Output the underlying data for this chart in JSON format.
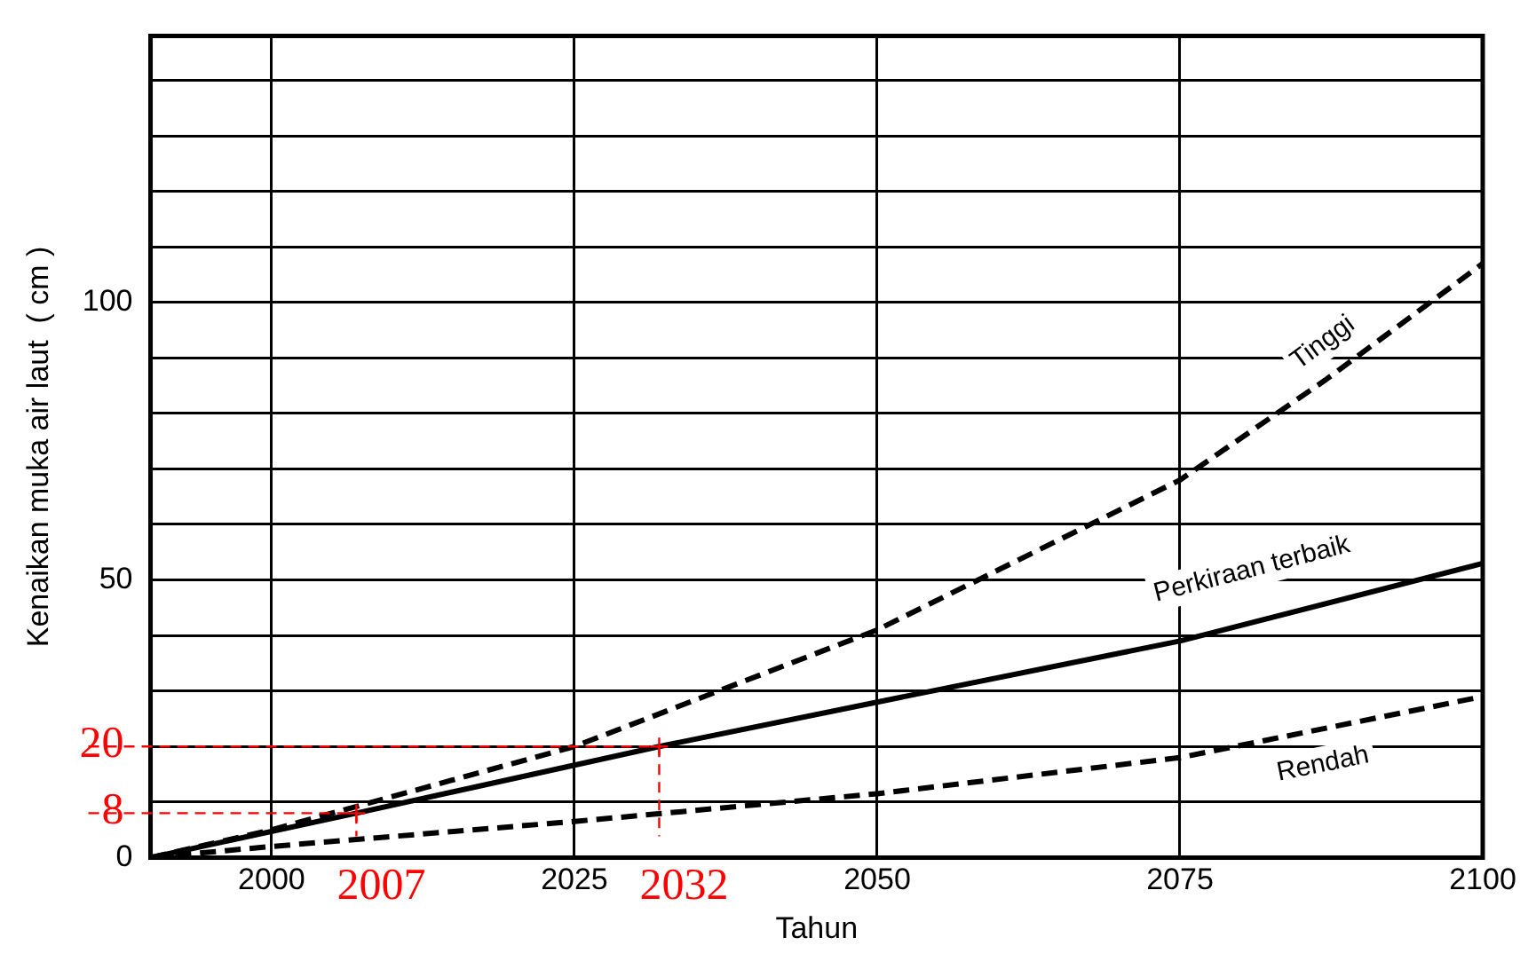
{
  "chart_data": {
    "type": "line",
    "xlabel": "Tahun",
    "ylabel": "Kenaikan muka air laut  ( cm )",
    "xlim": [
      1990,
      2100
    ],
    "ylim": [
      0,
      148
    ],
    "xticks": [
      2000,
      2025,
      2050,
      2075,
      2100
    ],
    "yticks": [
      0,
      {
        "value": 10,
        "label": null
      },
      {
        "value": 20,
        "label": null
      },
      {
        "value": 30,
        "label": null
      },
      {
        "value": 40,
        "label": null
      },
      50,
      {
        "value": 60,
        "label": null
      },
      {
        "value": 70,
        "label": null
      },
      {
        "value": 80,
        "label": null
      },
      {
        "value": 90,
        "label": null
      },
      100,
      {
        "value": 110,
        "label": null
      },
      {
        "value": 120,
        "label": null
      },
      {
        "value": 130,
        "label": null
      },
      {
        "value": 140,
        "label": null
      }
    ],
    "grid": true,
    "legend": false,
    "marker": "none",
    "series": [
      {
        "name": "Tinggi",
        "color": "#000000",
        "line_style": "dashed",
        "x": [
          1990,
          2000,
          2025,
          2050,
          2075,
          2087,
          2100
        ],
        "values": [
          0,
          5,
          20,
          41,
          68,
          86,
          107
        ]
      },
      {
        "name": "Perkiraan terbaik",
        "color": "#000000",
        "line_style": "solid",
        "x": [
          1990,
          2007,
          2032,
          2050,
          2075,
          2100
        ],
        "values": [
          0,
          8,
          20,
          28,
          39,
          53
        ]
      },
      {
        "name": "Rendah",
        "color": "#000000",
        "line_style": "dashed",
        "x": [
          1990,
          2000,
          2025,
          2050,
          2075,
          2100
        ],
        "values": [
          0,
          2,
          6.5,
          11.5,
          18,
          29
        ]
      }
    ],
    "annotations": [
      {
        "text": "8",
        "x": 2007,
        "y": 8
      },
      "2007",
      {
        "text": "20",
        "x": 2032,
        "y": 20
      },
      "2032"
    ]
  }
}
